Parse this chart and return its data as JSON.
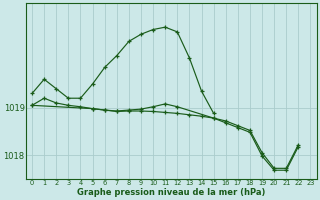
{
  "background_color": "#cce8e8",
  "plot_bg_color": "#cce8e8",
  "line_color": "#1a5c1a",
  "grid_color": "#aacccc",
  "xlabel": "Graphe pression niveau de la mer (hPa)",
  "ylim": [
    1017.5,
    1021.2
  ],
  "yticks": [
    1018.0,
    1019.0
  ],
  "xticks": [
    0,
    1,
    2,
    3,
    4,
    5,
    6,
    7,
    8,
    9,
    10,
    11,
    12,
    13,
    14,
    15,
    16,
    17,
    18,
    19,
    20,
    21,
    22,
    23
  ],
  "line1_x": [
    0,
    1,
    2,
    3,
    4,
    5,
    6,
    7,
    8,
    9,
    10,
    11,
    12,
    13,
    14,
    15
  ],
  "line1_y": [
    1019.3,
    1019.6,
    1019.4,
    1019.2,
    1019.2,
    1019.5,
    1019.85,
    1020.1,
    1020.4,
    1020.55,
    1020.65,
    1020.7,
    1020.6,
    1020.05,
    1019.35,
    1018.88
  ],
  "line2_x": [
    0,
    1,
    2,
    3,
    4,
    5,
    6,
    7,
    8,
    9,
    10,
    11,
    12,
    13,
    14,
    15,
    16,
    17,
    18,
    19,
    20,
    21,
    22
  ],
  "line2_y": [
    1019.05,
    1019.2,
    1019.1,
    1019.05,
    1019.02,
    1018.98,
    1018.95,
    1018.92,
    1018.93,
    1018.93,
    1018.92,
    1018.9,
    1018.88,
    1018.85,
    1018.82,
    1018.78,
    1018.72,
    1018.62,
    1018.52,
    1018.05,
    1017.72,
    1017.72,
    1018.22
  ],
  "line3_x": [
    0,
    5,
    6,
    7,
    8,
    9,
    10,
    11,
    12,
    15,
    16,
    17,
    18,
    19,
    20,
    21,
    22
  ],
  "line3_y": [
    1019.05,
    1018.98,
    1018.95,
    1018.93,
    1018.95,
    1018.97,
    1019.02,
    1019.08,
    1019.02,
    1018.78,
    1018.68,
    1018.58,
    1018.48,
    1017.98,
    1017.68,
    1017.68,
    1018.18
  ]
}
